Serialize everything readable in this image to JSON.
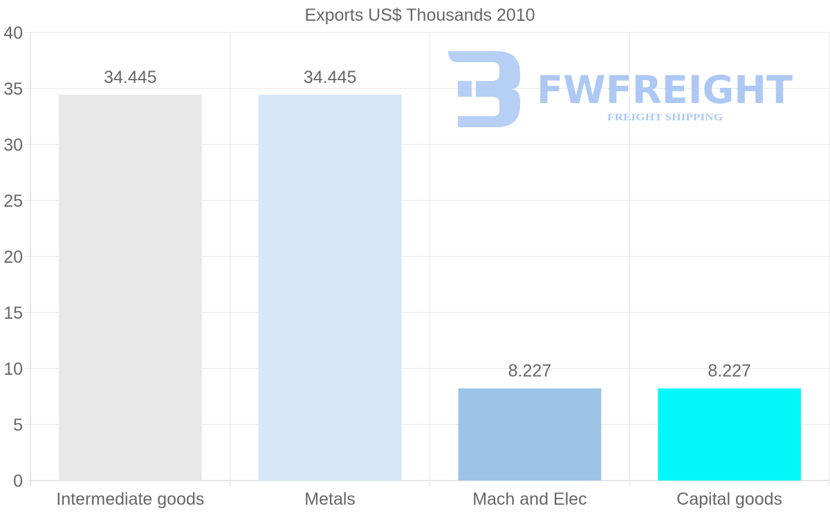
{
  "chart_data": {
    "type": "bar",
    "title": "Exports US$ Thousands 2010",
    "categories": [
      "Intermediate goods",
      "Metals",
      "Mach and Elec",
      "Capital goods"
    ],
    "values": [
      34.445,
      34.445,
      8.227,
      8.227
    ],
    "value_labels": [
      "34.445",
      "34.445",
      "8.227",
      "8.227"
    ],
    "bar_colors": [
      "#e8e8e8",
      "#d6e7f8",
      "#9cc4e6",
      "#02f8f8"
    ],
    "ylim": [
      0,
      40
    ],
    "yticks": [
      0,
      5,
      10,
      15,
      20,
      25,
      30,
      35,
      40
    ],
    "xlabel": "",
    "ylabel": "",
    "grid": true
  },
  "watermark": {
    "brand": "FWFREIGHT",
    "tagline": "FREIGHT SHIPPING",
    "color": "#a9c6f4"
  },
  "colors": {
    "text": "#666666",
    "grid": "#e6e6e6",
    "axis": "#cccccc"
  }
}
